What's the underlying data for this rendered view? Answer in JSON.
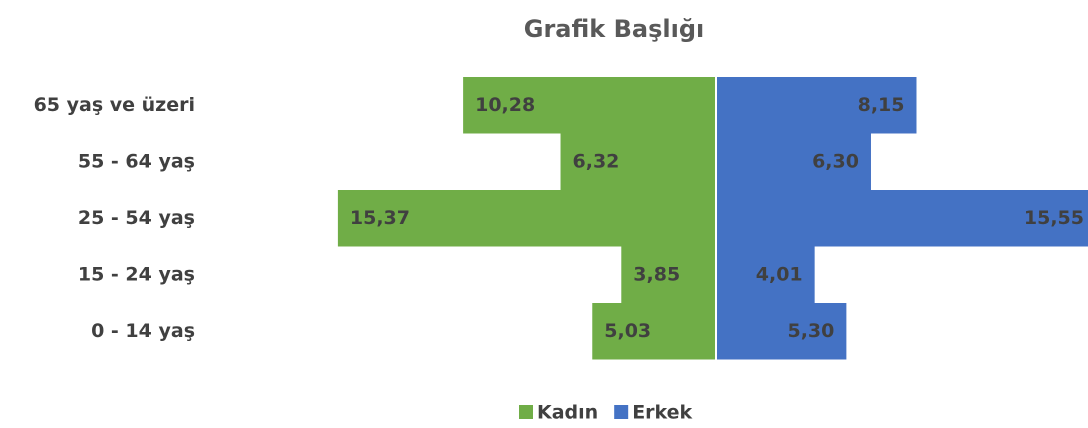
{
  "chart_data": {
    "type": "bar",
    "orientation": "horizontal-pyramid",
    "title": "Grafik Başlığı",
    "categories": [
      "65 yaş ve üzeri",
      "55 - 64 yaş",
      "25 - 54 yaş",
      "15 - 24 yaş",
      "0 - 14 yaş"
    ],
    "series": [
      {
        "name": "Kadın",
        "color": "#70ad47",
        "values": [
          10.28,
          6.32,
          15.37,
          3.85,
          5.03
        ],
        "value_labels": [
          "10,28",
          "6,32",
          "15,37",
          "3,85",
          "5,03"
        ]
      },
      {
        "name": "Erkek",
        "color": "#4472c4",
        "values": [
          8.15,
          6.3,
          15.55,
          4.01,
          5.3
        ],
        "value_labels": [
          "8,15",
          "6,30",
          "15,55",
          "4,01",
          "5,30"
        ]
      }
    ],
    "legend": "bottom"
  }
}
